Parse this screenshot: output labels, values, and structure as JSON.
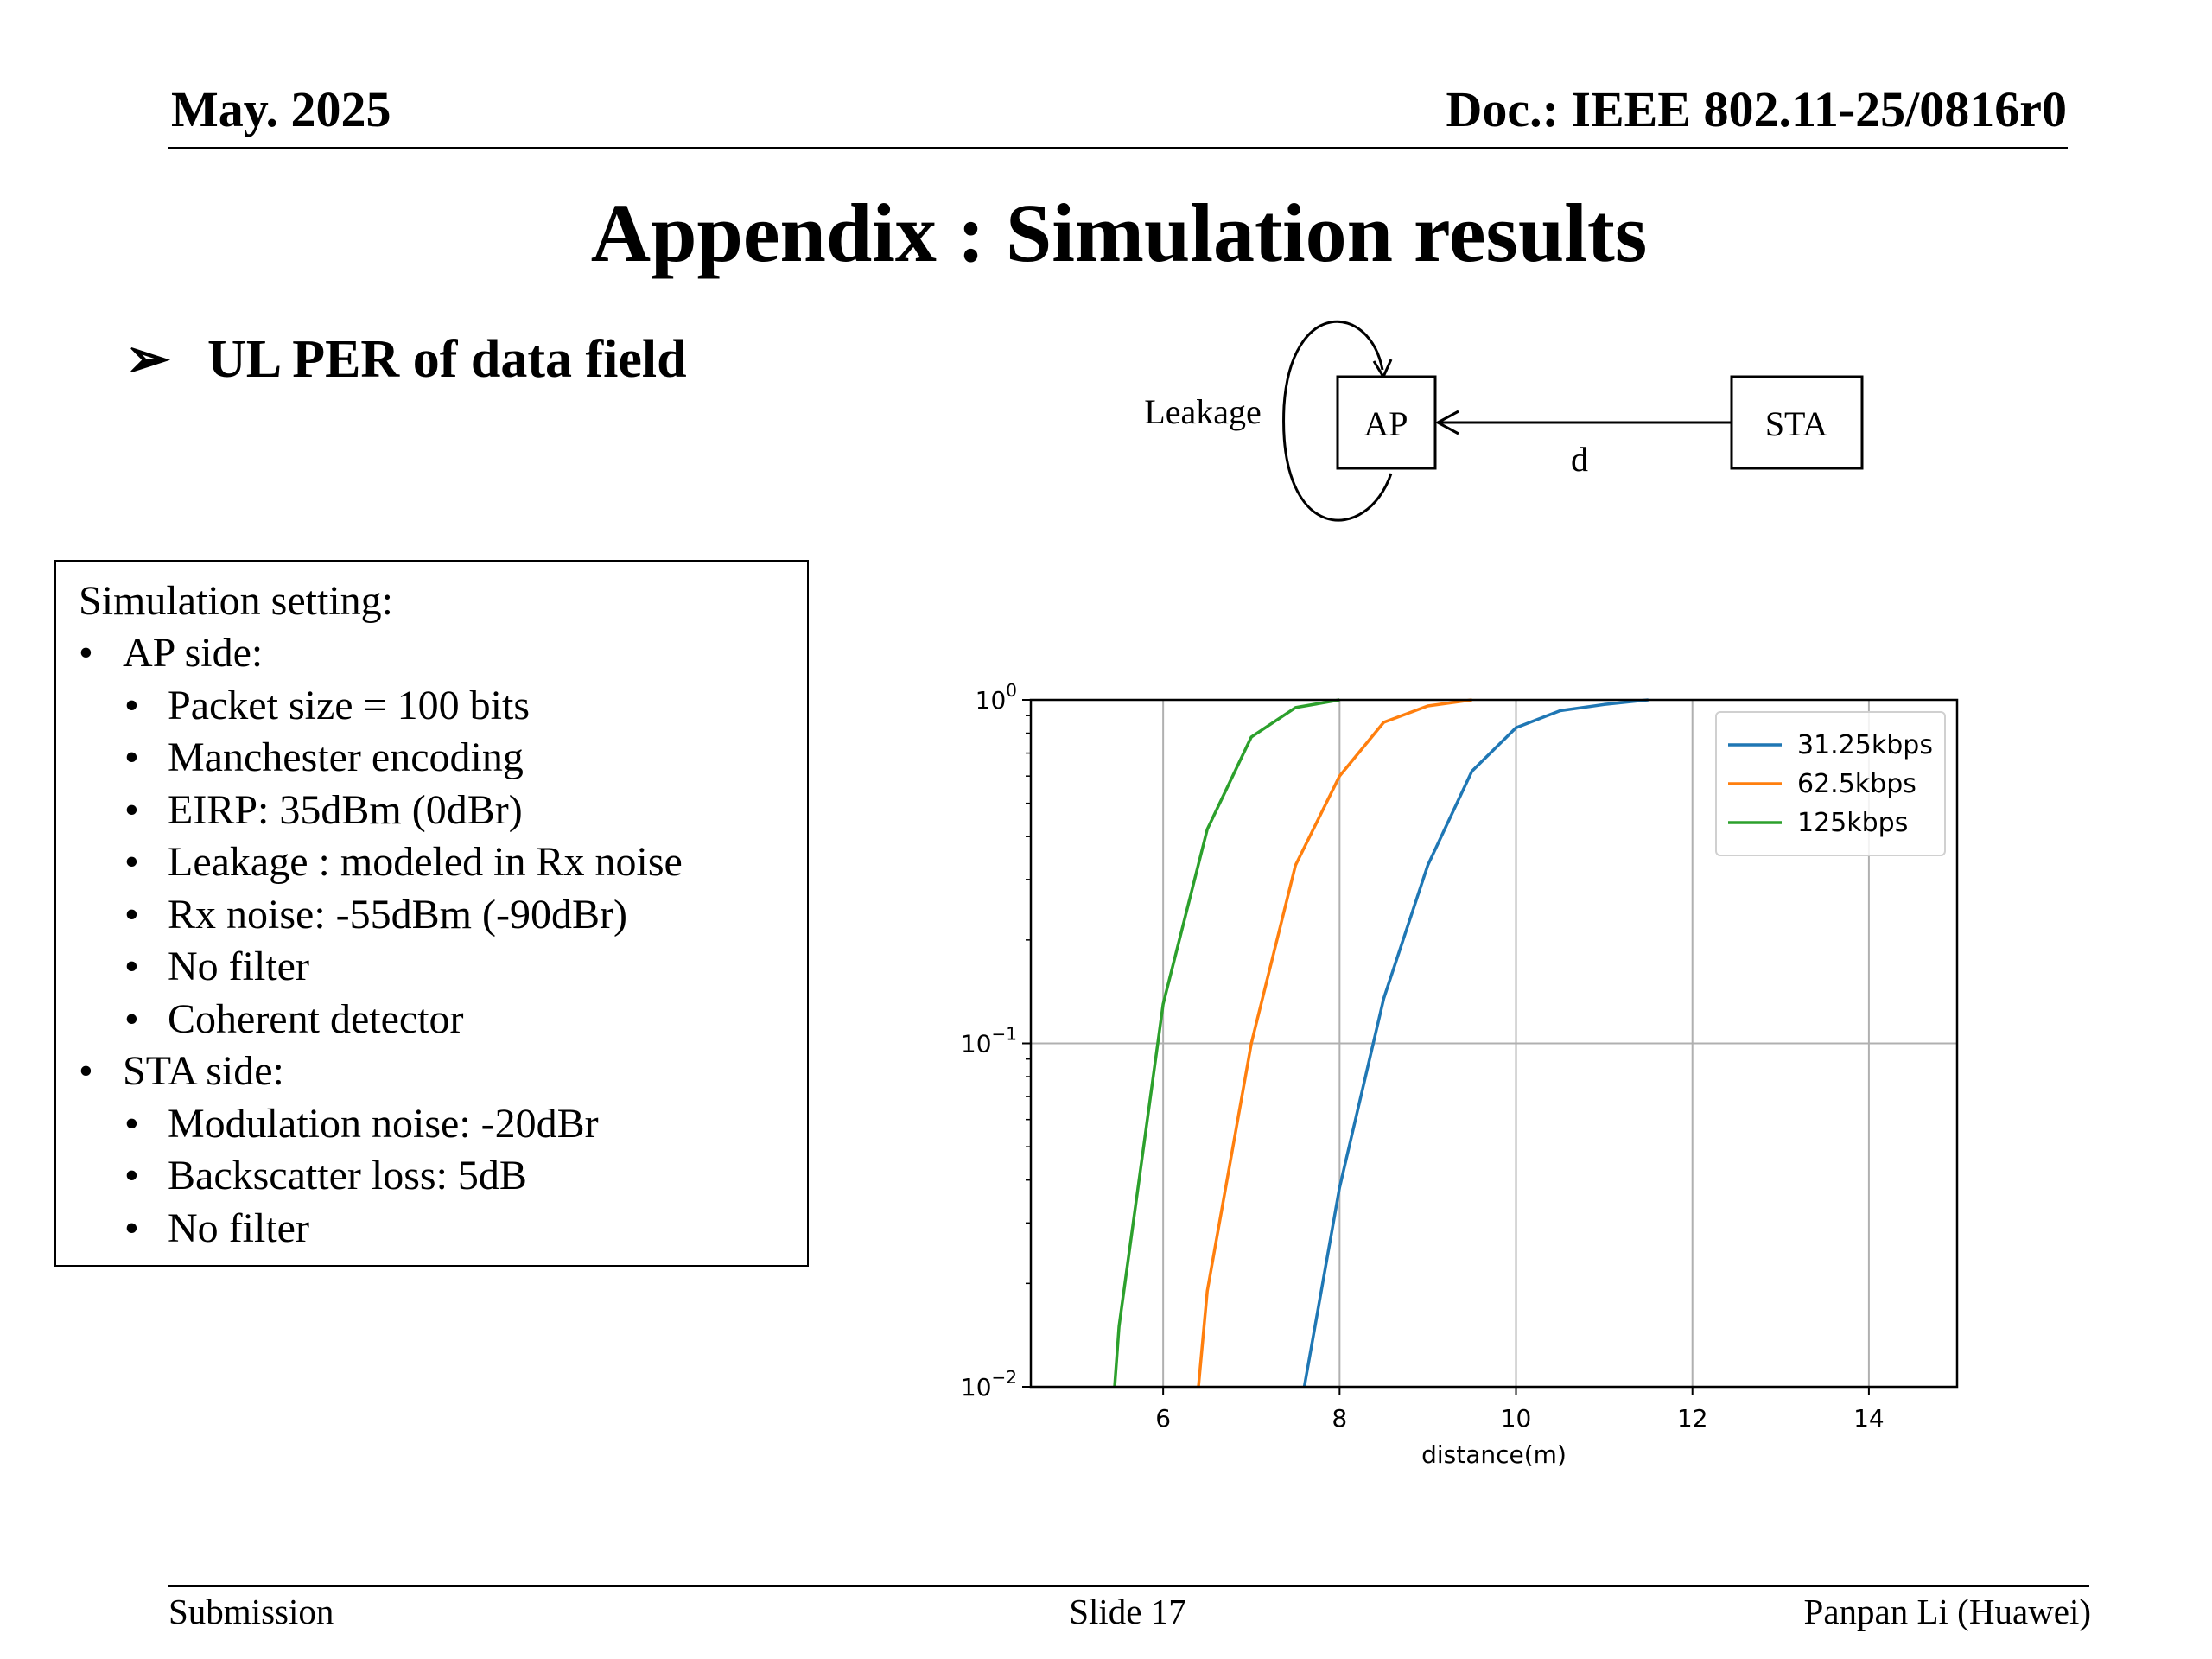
{
  "header": {
    "date": "May. 2025",
    "doc_id": "Doc.: IEEE 802.11-25/0816r0"
  },
  "slide": {
    "title": "Appendix : Simulation results",
    "bullet_symbol": "➢",
    "bullet": "UL PER of data field"
  },
  "diagram": {
    "leakage_label": "Leakage",
    "ap_label": "AP",
    "sta_label": "STA",
    "distance_label": "d"
  },
  "settings": {
    "heading": "Simulation setting:",
    "groups": [
      {
        "label": "AP side:",
        "items": [
          "Packet size = 100 bits",
          "Manchester encoding",
          "EIRP: 35dBm (0dBr)",
          "Leakage : modeled in Rx noise",
          "Rx noise: -55dBm (-90dBr)",
          "No filter",
          "Coherent detector"
        ]
      },
      {
        "label": "STA side:",
        "items": [
          "Modulation noise: -20dBr",
          "Backscatter loss: 5dB",
          "No filter"
        ]
      }
    ]
  },
  "chart_data": {
    "type": "line",
    "title": "",
    "xlabel": "distance(m)",
    "ylabel": "",
    "yscale": "log",
    "xlim": [
      4.5,
      15.0
    ],
    "ylim": [
      0.01,
      1
    ],
    "xticks": [
      6,
      8,
      10,
      12,
      14
    ],
    "yticks": [
      0.01,
      0.1,
      1
    ],
    "grid": true,
    "legend_position": "top-right",
    "series": [
      {
        "name": "31.25kbps",
        "color": "#1f77b4",
        "x": [
          7.6,
          8.0,
          8.5,
          9.0,
          9.5,
          10.0,
          10.5,
          11.0,
          11.5
        ],
        "y": [
          0.01,
          0.038,
          0.135,
          0.33,
          0.62,
          0.83,
          0.93,
          0.97,
          1.0
        ]
      },
      {
        "name": "62.5kbps",
        "color": "#ff7f0e",
        "x": [
          6.4,
          6.5,
          7.0,
          7.5,
          8.0,
          8.5,
          9.0,
          9.5
        ],
        "y": [
          0.01,
          0.019,
          0.1,
          0.33,
          0.6,
          0.86,
          0.96,
          1.0
        ]
      },
      {
        "name": "125kbps",
        "color": "#2ca02c",
        "x": [
          5.45,
          5.5,
          6.0,
          6.5,
          7.0,
          7.5,
          8.0
        ],
        "y": [
          0.01,
          0.015,
          0.13,
          0.42,
          0.78,
          0.95,
          1.0
        ]
      }
    ]
  },
  "footer": {
    "left": "Submission",
    "center": "Slide 17",
    "right": "Panpan Li (Huawei)"
  }
}
